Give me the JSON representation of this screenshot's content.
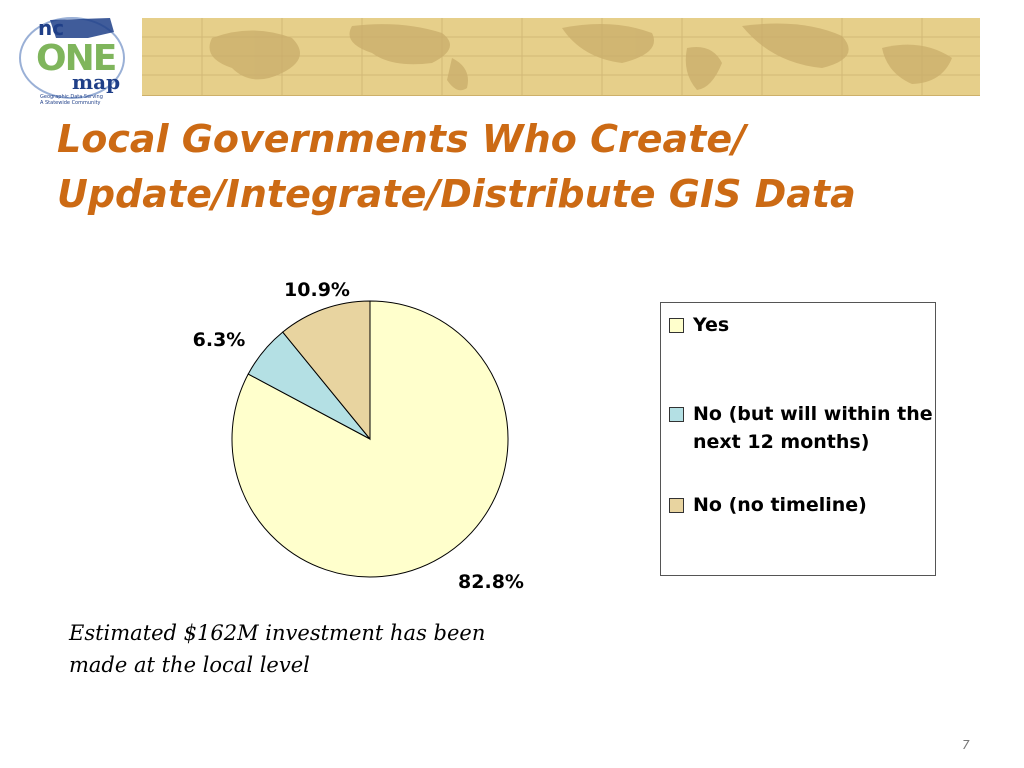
{
  "logo": {
    "line1": "nc",
    "line2": "ONE",
    "line3": "map",
    "tagline1": "Geographic Data Serving",
    "tagline2": "A Statewide Community"
  },
  "title": "Local Governments Who Create/ Update/Integrate/Distribute GIS Data",
  "chart_data": {
    "type": "pie",
    "slices": [
      {
        "name": "Yes",
        "value": 82.8,
        "label": "82.8%",
        "color": "#ffffcc"
      },
      {
        "name": "No (but will within the next 12 months)",
        "value": 6.3,
        "label": "6.3%",
        "color": "#b4e0e4"
      },
      {
        "name": "No (no timeline)",
        "value": 10.9,
        "label": "10.9%",
        "color": "#e8d4a0"
      }
    ],
    "legend_position": "right"
  },
  "note": "Estimated $162M investment has been made at the local level",
  "page_number": "7",
  "colors": {
    "title": "#cc6a14",
    "banner": "#e6cf8a"
  }
}
